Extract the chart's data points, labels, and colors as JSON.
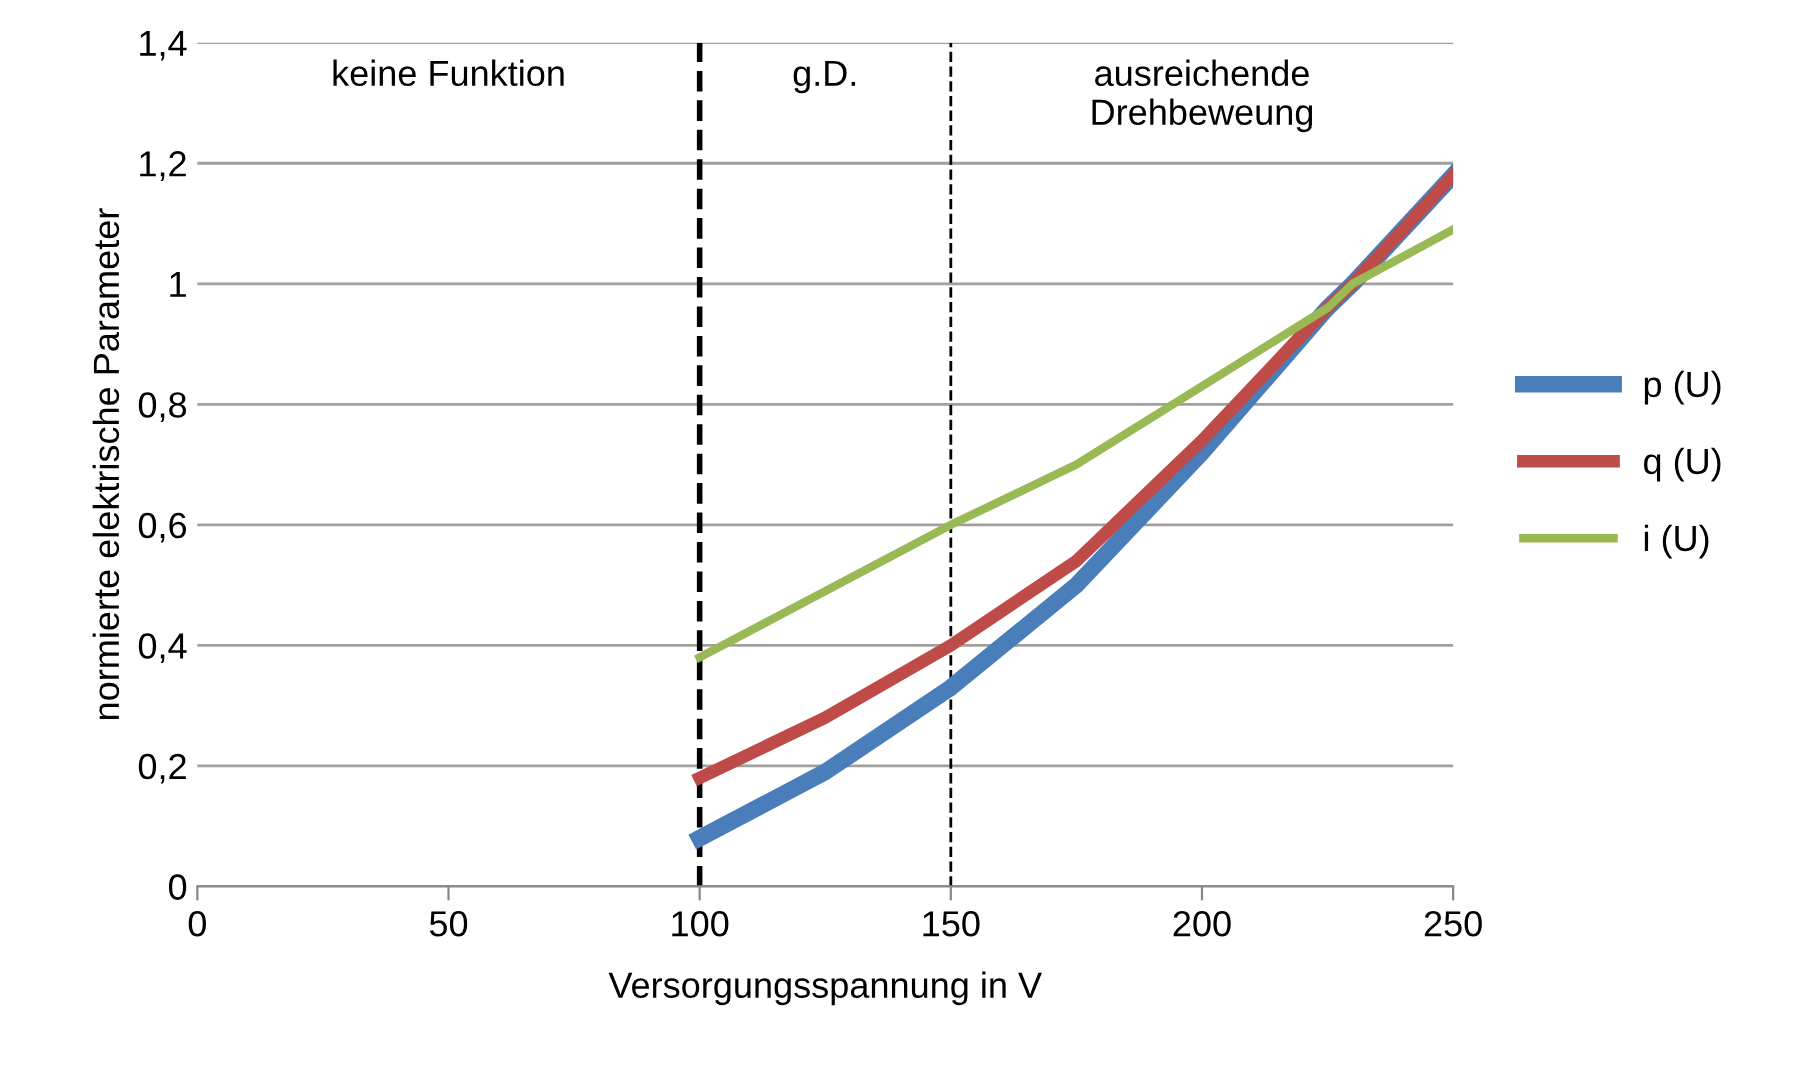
{
  "chart_data": {
    "type": "line",
    "xlabel": "Versorgungsspannung in V",
    "ylabel": "normierte elektrische Parameter",
    "x": [
      100,
      125,
      150,
      175,
      200,
      225,
      230,
      250
    ],
    "series": [
      {
        "name": "p (U)",
        "color": "#4a7ebb",
        "values": [
          0.08,
          0.19,
          0.33,
          0.5,
          0.72,
          0.96,
          1.0,
          1.18
        ]
      },
      {
        "name": "q (U)",
        "color": "#be4b48",
        "values": [
          0.18,
          0.28,
          0.4,
          0.54,
          0.74,
          0.96,
          1.0,
          1.18
        ]
      },
      {
        "name": "i (U)",
        "color": "#98b954",
        "values": [
          0.38,
          0.49,
          0.6,
          0.7,
          0.83,
          0.96,
          1.0,
          1.09
        ]
      }
    ],
    "xlim": [
      0,
      250
    ],
    "xticks": [
      0,
      50,
      100,
      150,
      200,
      250
    ],
    "ylim": [
      0,
      1.4
    ],
    "yticks": [
      0,
      {
        "value": 0.2,
        "label": "0,2"
      },
      {
        "value": 0.4,
        "label": "0,4"
      },
      {
        "value": 0.6,
        "label": "0,6"
      },
      {
        "value": 0.8,
        "label": "0,8"
      },
      1,
      {
        "value": 1.2,
        "label": "1,2"
      },
      {
        "value": 1.4,
        "label": "1,4"
      }
    ],
    "ref_lines": [
      {
        "axis": "x",
        "value": 100,
        "color": "#000000",
        "line_style": "dashed"
      },
      {
        "axis": "x",
        "value": 150,
        "color": "#000000",
        "line_style": "dashed"
      }
    ],
    "annotations": [
      "keine Funktion",
      "g.D.",
      "ausreichende\nDrehbeweung"
    ],
    "grid": "y",
    "legend": "right",
    "marker": "none",
    "line_style": "solid"
  }
}
